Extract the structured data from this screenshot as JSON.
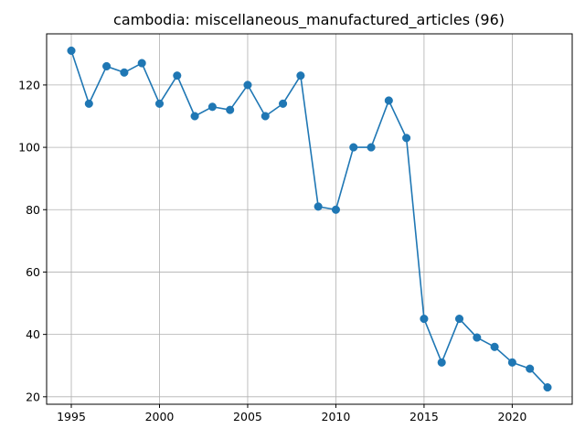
{
  "chart_data": {
    "type": "line",
    "title": "cambodia: miscellaneous_manufactured_articles (96)",
    "xlabel": "",
    "ylabel": "",
    "xlim": [
      1993.6,
      2023.4
    ],
    "ylim": [
      17.6,
      136.4
    ],
    "xticks": [
      1995,
      2000,
      2005,
      2010,
      2015,
      2020
    ],
    "yticks": [
      20,
      40,
      60,
      80,
      100,
      120
    ],
    "grid": true,
    "legend": "none",
    "marker": "circle",
    "series": [
      {
        "color": "#1f77b4",
        "x": [
          1995,
          1996,
          1997,
          1998,
          1999,
          2000,
          2001,
          2002,
          2003,
          2004,
          2005,
          2006,
          2007,
          2008,
          2009,
          2010,
          2011,
          2012,
          2013,
          2014,
          2015,
          2016,
          2017,
          2018,
          2019,
          2020,
          2021,
          2022
        ],
        "y": [
          131,
          114,
          126,
          124,
          127,
          114,
          123,
          110,
          113,
          112,
          120,
          110,
          114,
          123,
          81,
          80,
          100,
          100,
          115,
          103,
          45,
          31,
          45,
          39,
          36,
          31,
          29,
          23
        ]
      }
    ]
  }
}
